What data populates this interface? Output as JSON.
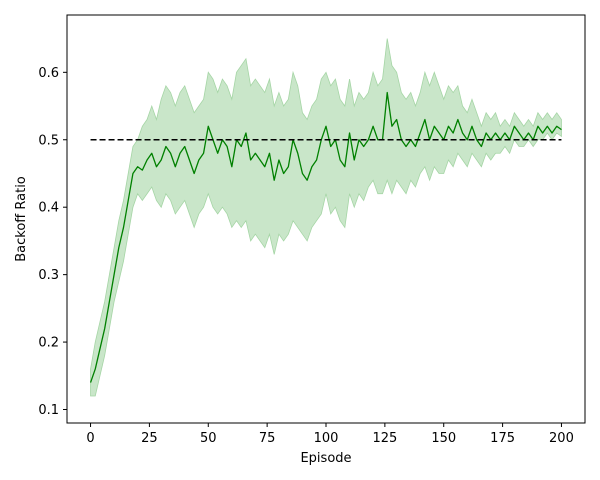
{
  "chart_data": {
    "type": "line",
    "title": "",
    "xlabel": "Episode",
    "ylabel": "Backoff Ratio",
    "xlim": [
      -10,
      210
    ],
    "ylim": [
      0.08,
      0.685
    ],
    "xticks": [
      0,
      25,
      50,
      75,
      100,
      125,
      150,
      175,
      200
    ],
    "yticks": [
      0.1,
      0.2,
      0.3,
      0.4,
      0.5,
      0.6
    ],
    "grid": false,
    "legend": "none",
    "colors": {
      "line": "#008000",
      "band": "#a5d5a5",
      "reference": "#000000"
    },
    "series": [
      {
        "style": "solid",
        "x": [
          0,
          2,
          4,
          6,
          8,
          10,
          12,
          14,
          16,
          18,
          20,
          22,
          24,
          26,
          28,
          30,
          32,
          34,
          36,
          38,
          40,
          42,
          44,
          46,
          48,
          50,
          52,
          54,
          56,
          58,
          60,
          62,
          64,
          66,
          68,
          70,
          72,
          74,
          76,
          78,
          80,
          82,
          84,
          86,
          88,
          90,
          92,
          94,
          96,
          98,
          100,
          102,
          104,
          106,
          108,
          110,
          112,
          114,
          116,
          118,
          120,
          122,
          124,
          126,
          128,
          130,
          132,
          134,
          136,
          138,
          140,
          142,
          144,
          146,
          148,
          150,
          152,
          154,
          156,
          158,
          160,
          162,
          164,
          166,
          168,
          170,
          172,
          174,
          176,
          178,
          180,
          182,
          184,
          186,
          188,
          190,
          192,
          194,
          196,
          198,
          200
        ],
        "values": [
          0.14,
          0.16,
          0.19,
          0.22,
          0.26,
          0.3,
          0.34,
          0.37,
          0.41,
          0.45,
          0.46,
          0.455,
          0.47,
          0.48,
          0.46,
          0.47,
          0.49,
          0.48,
          0.46,
          0.48,
          0.49,
          0.47,
          0.45,
          0.47,
          0.48,
          0.52,
          0.5,
          0.48,
          0.5,
          0.49,
          0.46,
          0.5,
          0.49,
          0.51,
          0.47,
          0.48,
          0.47,
          0.46,
          0.48,
          0.44,
          0.47,
          0.45,
          0.46,
          0.5,
          0.48,
          0.45,
          0.44,
          0.46,
          0.47,
          0.5,
          0.52,
          0.49,
          0.5,
          0.47,
          0.46,
          0.51,
          0.47,
          0.5,
          0.49,
          0.5,
          0.52,
          0.5,
          0.5,
          0.57,
          0.52,
          0.53,
          0.5,
          0.49,
          0.5,
          0.49,
          0.51,
          0.53,
          0.5,
          0.52,
          0.51,
          0.5,
          0.52,
          0.51,
          0.53,
          0.51,
          0.5,
          0.52,
          0.5,
          0.49,
          0.51,
          0.5,
          0.51,
          0.5,
          0.51,
          0.5,
          0.52,
          0.51,
          0.5,
          0.51,
          0.5,
          0.52,
          0.51,
          0.52,
          0.51,
          0.52,
          0.515
        ],
        "lower": [
          0.12,
          0.12,
          0.15,
          0.18,
          0.22,
          0.26,
          0.29,
          0.32,
          0.36,
          0.4,
          0.42,
          0.41,
          0.42,
          0.43,
          0.41,
          0.4,
          0.42,
          0.41,
          0.39,
          0.4,
          0.41,
          0.39,
          0.37,
          0.39,
          0.4,
          0.42,
          0.4,
          0.39,
          0.4,
          0.39,
          0.37,
          0.38,
          0.37,
          0.38,
          0.35,
          0.36,
          0.35,
          0.34,
          0.36,
          0.33,
          0.36,
          0.35,
          0.36,
          0.38,
          0.37,
          0.36,
          0.35,
          0.37,
          0.38,
          0.39,
          0.42,
          0.39,
          0.4,
          0.38,
          0.37,
          0.42,
          0.4,
          0.42,
          0.41,
          0.43,
          0.44,
          0.42,
          0.42,
          0.44,
          0.42,
          0.44,
          0.43,
          0.42,
          0.44,
          0.43,
          0.45,
          0.46,
          0.44,
          0.46,
          0.45,
          0.45,
          0.47,
          0.46,
          0.48,
          0.47,
          0.46,
          0.48,
          0.47,
          0.46,
          0.48,
          0.47,
          0.48,
          0.48,
          0.49,
          0.48,
          0.5,
          0.49,
          0.49,
          0.5,
          0.49,
          0.5,
          0.5,
          0.51,
          0.5,
          0.51,
          0.505
        ],
        "upper": [
          0.16,
          0.2,
          0.23,
          0.26,
          0.3,
          0.34,
          0.38,
          0.41,
          0.45,
          0.49,
          0.5,
          0.52,
          0.53,
          0.55,
          0.53,
          0.56,
          0.58,
          0.57,
          0.55,
          0.57,
          0.58,
          0.56,
          0.54,
          0.55,
          0.56,
          0.6,
          0.59,
          0.57,
          0.59,
          0.58,
          0.56,
          0.6,
          0.61,
          0.62,
          0.58,
          0.59,
          0.58,
          0.57,
          0.59,
          0.55,
          0.57,
          0.55,
          0.56,
          0.6,
          0.58,
          0.54,
          0.53,
          0.55,
          0.56,
          0.59,
          0.6,
          0.58,
          0.59,
          0.56,
          0.55,
          0.59,
          0.55,
          0.57,
          0.56,
          0.57,
          0.6,
          0.58,
          0.59,
          0.65,
          0.61,
          0.6,
          0.57,
          0.56,
          0.57,
          0.55,
          0.57,
          0.6,
          0.58,
          0.6,
          0.58,
          0.56,
          0.58,
          0.57,
          0.58,
          0.55,
          0.54,
          0.56,
          0.54,
          0.52,
          0.54,
          0.53,
          0.54,
          0.52,
          0.53,
          0.52,
          0.54,
          0.53,
          0.52,
          0.53,
          0.52,
          0.54,
          0.53,
          0.54,
          0.53,
          0.54,
          0.53
        ]
      },
      {
        "style": "dashed",
        "x": [
          0,
          200
        ],
        "values": [
          0.5,
          0.5
        ]
      }
    ]
  }
}
